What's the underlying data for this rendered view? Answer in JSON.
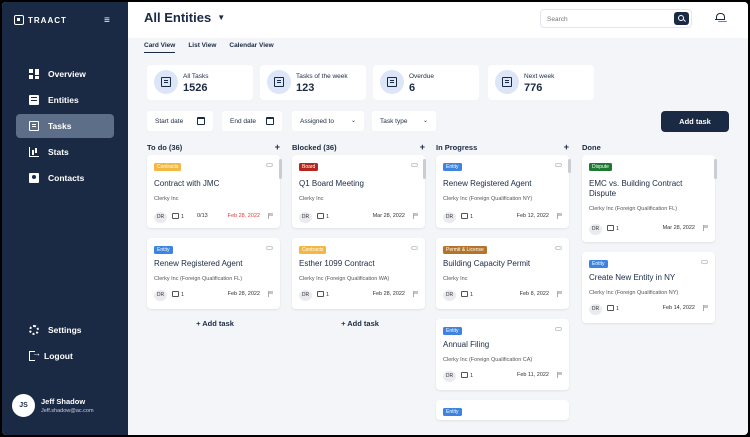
{
  "sidebar": {
    "logo": "TRAACT",
    "collapse_icon": "collapse-menu-icon",
    "nav": [
      {
        "label": "Overview",
        "icon": "grid-icon"
      },
      {
        "label": "Entities",
        "icon": "building-icon"
      },
      {
        "label": "Tasks",
        "icon": "tasks-icon",
        "active": true
      },
      {
        "label": "Stats",
        "icon": "stats-icon"
      },
      {
        "label": "Contacts",
        "icon": "contacts-icon"
      }
    ],
    "bottom": [
      {
        "label": "Settings",
        "icon": "gear-icon"
      },
      {
        "label": "Logout",
        "icon": "logout-icon"
      }
    ],
    "user": {
      "initials": "JS",
      "name": "Jeff Shadow",
      "email": "Jeff.shadow@ac.com"
    }
  },
  "header": {
    "title": "All Entities",
    "search_placeholder": "Search"
  },
  "tabs": [
    "Card View",
    "List View",
    "Calendar View"
  ],
  "stats": [
    {
      "label": "All Tasks",
      "value": "1526"
    },
    {
      "label": "Tasks of the week",
      "value": "123"
    },
    {
      "label": "Overdue",
      "value": "6"
    },
    {
      "label": "Next week",
      "value": "776"
    }
  ],
  "filters": {
    "start_date": "Start date",
    "end_date": "End date",
    "assigned_to": "Assigned to",
    "task_type": "Task type",
    "add_task": "Add task"
  },
  "columns": {
    "todo": {
      "title": "To do (36)",
      "cards": [
        {
          "badge": "Contracts",
          "title": "Contract with JMC",
          "sub": "Clerky Inc",
          "dr": "DR",
          "comments": "1",
          "progress": "0/13",
          "due": "Feb 28, 2022"
        },
        {
          "badge": "Entity",
          "title": "Renew Registered Agent",
          "sub": "Clerky Inc (Foreign Qualification FL)",
          "dr": "DR",
          "comments": "1",
          "due": "Feb 28, 2022"
        }
      ],
      "add": "+ Add task"
    },
    "blocked": {
      "title": "Blocked (36)",
      "cards": [
        {
          "badge": "Board",
          "title": "Q1 Board Meeting",
          "sub": "Clerky Inc",
          "dr": "DR",
          "comments": "1",
          "due": "Mar 28, 2022"
        },
        {
          "badge": "Contracts",
          "title": "Esther 1099 Contract",
          "sub": "Clerky Inc (Foreign Qualification WA)",
          "dr": "DR",
          "comments": "1",
          "due": "Feb 28, 2022"
        }
      ],
      "add": "+ Add task"
    },
    "inprogress": {
      "title": "In Progress",
      "cards": [
        {
          "badge": "Entity",
          "title": "Renew Registered Agent",
          "sub": "Clerky Inc (Foreign Qualification NY)",
          "dr": "DR",
          "comments": "1",
          "due": "Feb 12, 2022"
        },
        {
          "badge": "Permit & License",
          "title": "Building Capacity Permit",
          "sub": "Clerky Inc",
          "dr": "DR",
          "comments": "1",
          "due": "Feb 8, 2022"
        },
        {
          "badge": "Entity",
          "title": "Annual Filing",
          "sub": "Clerky Inc (Foreign Qualification CA)",
          "dr": "DR",
          "comments": "1",
          "due": "Feb 11, 2022"
        },
        {
          "badge": "Entity"
        }
      ]
    },
    "done": {
      "title": "Done",
      "cards": [
        {
          "badge": "Dispute",
          "title": "EMC vs. Building Contract Dispute",
          "sub": "Clerky Inc (Foreign Qualification FL)",
          "dr": "DR",
          "comments": "1",
          "due": "Mar 28, 2022"
        },
        {
          "badge": "Entity",
          "title": "Create New Entity in NY",
          "sub": "Clerky Inc (Foreign Qualification NY)",
          "dr": "DR",
          "comments": "1",
          "due": "Feb 14, 2022"
        }
      ]
    }
  },
  "colors": {
    "navy": "#1b2a44",
    "overdue": "#e23b3b"
  }
}
